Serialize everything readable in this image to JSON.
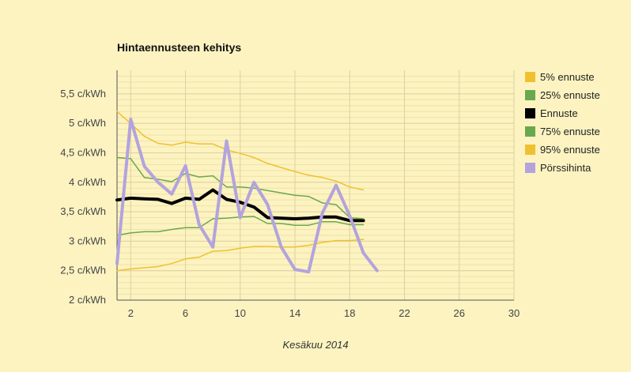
{
  "chart_data": {
    "type": "line",
    "title": "Hintaennusteen kehitys",
    "xlabel": "Kesäkuu 2014",
    "ylabel": "",
    "xlim": [
      1,
      30
    ],
    "ylim": [
      2,
      5.9
    ],
    "x_ticks": [
      2,
      6,
      10,
      14,
      18,
      22,
      26,
      30
    ],
    "y_ticks": [
      {
        "value": 2,
        "label": "2 c/kWh"
      },
      {
        "value": 2.5,
        "label": "2,5 c/kWh"
      },
      {
        "value": 3,
        "label": "3 c/kWh"
      },
      {
        "value": 3.5,
        "label": "3,5 c/kWh"
      },
      {
        "value": 4,
        "label": "4 c/kWh"
      },
      {
        "value": 4.5,
        "label": "4,5 c/kWh"
      },
      {
        "value": 5,
        "label": "5 c/kWh"
      },
      {
        "value": 5.5,
        "label": "5,5 c/kWh"
      }
    ],
    "grid": true,
    "legend_position": "right",
    "series": [
      {
        "name": "5% ennuste",
        "color": "#f0c030",
        "width": 1.5,
        "x": [
          1,
          2,
          3,
          4,
          5,
          6,
          7,
          8,
          9,
          10,
          11,
          12,
          13,
          14,
          15,
          16,
          17,
          18,
          19
        ],
        "y": [
          2.5,
          2.53,
          2.55,
          2.57,
          2.62,
          2.7,
          2.73,
          2.83,
          2.84,
          2.88,
          2.91,
          2.91,
          2.9,
          2.9,
          2.93,
          2.98,
          3.01,
          3.01,
          3.03
        ]
      },
      {
        "name": "25% ennuste",
        "color": "#6aa84f",
        "width": 1.5,
        "x": [
          1,
          2,
          3,
          4,
          5,
          6,
          7,
          8,
          9,
          10,
          11,
          12,
          13,
          14,
          15,
          16,
          17,
          18,
          19
        ],
        "y": [
          3.1,
          3.14,
          3.16,
          3.16,
          3.2,
          3.23,
          3.23,
          3.38,
          3.39,
          3.41,
          3.42,
          3.3,
          3.3,
          3.27,
          3.27,
          3.33,
          3.33,
          3.28,
          3.28
        ]
      },
      {
        "name": "Ennuste",
        "color": "#000000",
        "width": 4,
        "x": [
          1,
          2,
          3,
          4,
          5,
          6,
          7,
          8,
          9,
          10,
          11,
          12,
          13,
          14,
          15,
          16,
          17,
          18,
          19
        ],
        "y": [
          3.7,
          3.73,
          3.72,
          3.71,
          3.64,
          3.73,
          3.71,
          3.87,
          3.71,
          3.66,
          3.58,
          3.4,
          3.39,
          3.38,
          3.39,
          3.41,
          3.41,
          3.35,
          3.35
        ]
      },
      {
        "name": "75% ennuste",
        "color": "#6aa84f",
        "width": 1.5,
        "x": [
          1,
          2,
          3,
          4,
          5,
          6,
          7,
          8,
          9,
          10,
          11,
          12,
          13,
          14,
          15,
          16,
          17,
          18,
          19
        ],
        "y": [
          4.42,
          4.4,
          4.08,
          4.05,
          4.01,
          4.15,
          4.09,
          4.11,
          3.92,
          3.92,
          3.9,
          3.86,
          3.82,
          3.78,
          3.76,
          3.65,
          3.62,
          3.4,
          3.38
        ]
      },
      {
        "name": "95% ennuste",
        "color": "#f0c030",
        "width": 1.5,
        "x": [
          1,
          2,
          3,
          4,
          5,
          6,
          7,
          8,
          9,
          10,
          11,
          12,
          13,
          14,
          15,
          16,
          17,
          18,
          19
        ],
        "y": [
          5.2,
          5.0,
          4.78,
          4.66,
          4.63,
          4.68,
          4.65,
          4.65,
          4.55,
          4.49,
          4.42,
          4.32,
          4.25,
          4.18,
          4.12,
          4.08,
          4.02,
          3.92,
          3.87
        ]
      },
      {
        "name": "Pörssihinta",
        "color": "#b3a3dd",
        "width": 4,
        "x": [
          1,
          2,
          3,
          4,
          5,
          6,
          7,
          8,
          9,
          10,
          11,
          12,
          13,
          14,
          15,
          16,
          17,
          18,
          19,
          20
        ],
        "y": [
          2.62,
          5.07,
          4.27,
          4.0,
          3.8,
          4.28,
          3.28,
          2.9,
          4.7,
          3.4,
          4.0,
          3.62,
          2.9,
          2.52,
          2.48,
          3.48,
          3.95,
          3.43,
          2.8,
          2.5
        ]
      }
    ]
  }
}
